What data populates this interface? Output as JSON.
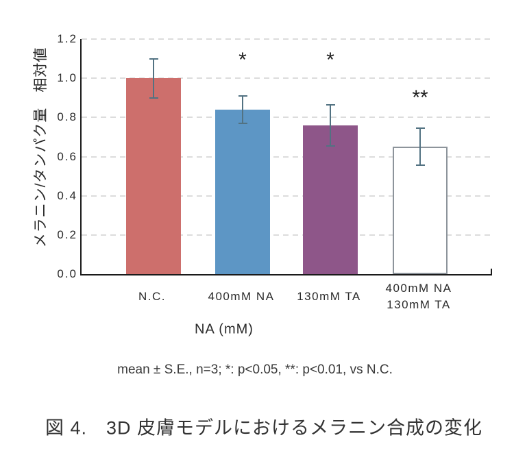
{
  "chart_data": {
    "type": "bar",
    "title": "図 4.　3D 皮膚モデルにおけるメラニン合成の変化",
    "footnote": "mean ± S.E., n=3; *: p<0.05, **: p<0.01, vs N.C.",
    "xlabel": "NA (mM)",
    "ylabel": "メラニン/タンパク量　相対値",
    "ylim": [
      0.0,
      1.2
    ],
    "yticks": [
      "0.0",
      "0.2",
      "0.4",
      "0.6",
      "0.8",
      "1.0",
      "1.2"
    ],
    "grid": "horizontal-dashed",
    "legend_position": "none",
    "categories": [
      {
        "lines": [
          "N.C."
        ]
      },
      {
        "lines": [
          "400mM NA"
        ]
      },
      {
        "lines": [
          "130mM TA"
        ]
      },
      {
        "lines": [
          "400mM NA",
          "130mM TA"
        ]
      }
    ],
    "values": [
      1.0,
      0.84,
      0.76,
      0.65
    ],
    "errors": [
      0.1,
      0.07,
      0.105,
      0.095
    ],
    "annotations": [
      "",
      "*",
      "*",
      "**"
    ],
    "colors": {
      "bar_fills": [
        "#cd6f6c",
        "#5d96c5",
        "#8e5689",
        "#ffffff"
      ],
      "bar_borders": [
        "none",
        "none",
        "none",
        "#8d949b"
      ],
      "error_bar": "#527282",
      "gridline": "#dcdcdc",
      "axis": "#1a1a1a",
      "text": "#2b2b2b"
    }
  }
}
